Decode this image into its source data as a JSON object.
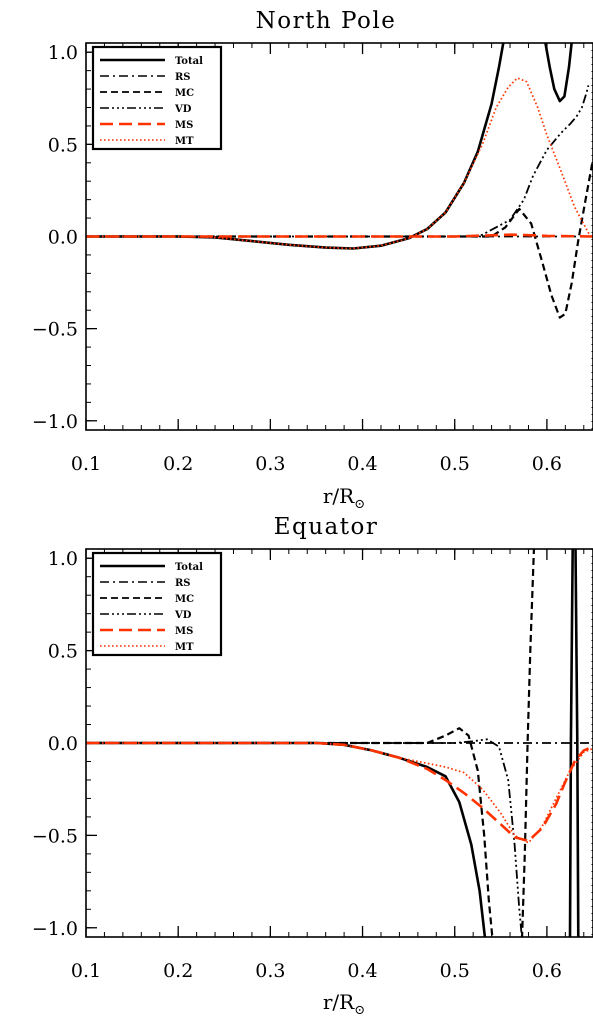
{
  "chart_data": [
    {
      "type": "line",
      "title": "North Pole",
      "xlabel": "r/R",
      "xlabel_sub": "⊙",
      "ylabel": "",
      "xlim": [
        0.1,
        0.65
      ],
      "ylim": [
        -1.05,
        1.05
      ],
      "xticks": [
        "0.1",
        "0.2",
        "0.3",
        "0.4",
        "0.5",
        "0.6"
      ],
      "xtick_values": [
        0.1,
        0.2,
        0.3,
        0.4,
        0.5,
        0.6
      ],
      "yticks": [
        "1.0",
        "0.5",
        "0.0",
        "−0.5",
        "−1.0"
      ],
      "ytick_values": [
        1.0,
        0.5,
        0.0,
        -0.5,
        -1.0
      ],
      "legend_position": "top-left",
      "series": [
        {
          "name": "Total",
          "color": "#000000",
          "dash": "solid",
          "width": 2.6,
          "points": [
            [
              0.1,
              0
            ],
            [
              0.2,
              0
            ],
            [
              0.24,
              -0.005
            ],
            [
              0.28,
              -0.025
            ],
            [
              0.32,
              -0.045
            ],
            [
              0.36,
              -0.06
            ],
            [
              0.39,
              -0.065
            ],
            [
              0.42,
              -0.05
            ],
            [
              0.45,
              -0.01
            ],
            [
              0.47,
              0.04
            ],
            [
              0.49,
              0.13
            ],
            [
              0.51,
              0.29
            ],
            [
              0.525,
              0.46
            ],
            [
              0.54,
              0.72
            ],
            [
              0.548,
              0.92
            ],
            [
              0.553,
              1.06
            ]
          ]
        },
        {
          "name": "Total",
          "color": "#000000",
          "dash": "solid",
          "width": 2.6,
          "points": [
            [
              0.598,
              1.06
            ],
            [
              0.603,
              0.92
            ],
            [
              0.608,
              0.8
            ],
            [
              0.614,
              0.735
            ],
            [
              0.619,
              0.76
            ],
            [
              0.624,
              0.92
            ],
            [
              0.627,
              1.06
            ]
          ]
        },
        {
          "name": "RS",
          "color": "#000000",
          "dash": "dashdot",
          "width": 1.8,
          "points": [
            [
              0.1,
              0
            ],
            [
              0.65,
              0
            ]
          ]
        },
        {
          "name": "MC",
          "color": "#000000",
          "dash": "dash",
          "width": 2.2,
          "points": [
            [
              0.1,
              0
            ],
            [
              0.54,
              0
            ],
            [
              0.555,
              0.05
            ],
            [
              0.57,
              0.15
            ],
            [
              0.583,
              0.07
            ],
            [
              0.595,
              -0.14
            ],
            [
              0.605,
              -0.32
            ],
            [
              0.614,
              -0.44
            ],
            [
              0.62,
              -0.42
            ],
            [
              0.627,
              -0.25
            ],
            [
              0.634,
              -0.02
            ],
            [
              0.642,
              0.2
            ],
            [
              0.65,
              0.42
            ]
          ]
        },
        {
          "name": "VD",
          "color": "#000000",
          "dash": "dashdotdotdot",
          "width": 1.8,
          "points": [
            [
              0.1,
              0
            ],
            [
              0.52,
              0
            ],
            [
              0.53,
              0.01
            ],
            [
              0.545,
              0.05
            ],
            [
              0.56,
              0.09
            ],
            [
              0.575,
              0.2
            ],
            [
              0.585,
              0.33
            ],
            [
              0.6,
              0.47
            ],
            [
              0.615,
              0.56
            ],
            [
              0.625,
              0.61
            ],
            [
              0.632,
              0.65
            ],
            [
              0.638,
              0.7
            ],
            [
              0.643,
              0.78
            ],
            [
              0.645,
              0.82
            ]
          ]
        },
        {
          "name": "MS",
          "color": "#ff3300",
          "dash": "longdash",
          "width": 2.6,
          "points": [
            [
              0.1,
              0
            ],
            [
              0.5,
              0
            ],
            [
              0.53,
              0.005
            ],
            [
              0.56,
              0.01
            ],
            [
              0.575,
              0.008
            ],
            [
              0.6,
              0.003
            ],
            [
              0.65,
              0
            ]
          ]
        },
        {
          "name": "MT",
          "color": "#ff3300",
          "dash": "dot",
          "width": 1.7,
          "points": [
            [
              0.1,
              0
            ],
            [
              0.2,
              0
            ],
            [
              0.24,
              -0.005
            ],
            [
              0.28,
              -0.025
            ],
            [
              0.32,
              -0.045
            ],
            [
              0.36,
              -0.06
            ],
            [
              0.39,
              -0.065
            ],
            [
              0.42,
              -0.05
            ],
            [
              0.45,
              -0.01
            ],
            [
              0.47,
              0.04
            ],
            [
              0.49,
              0.13
            ],
            [
              0.51,
              0.29
            ],
            [
              0.53,
              0.5
            ],
            [
              0.545,
              0.7
            ],
            [
              0.558,
              0.81
            ],
            [
              0.568,
              0.86
            ],
            [
              0.578,
              0.84
            ],
            [
              0.59,
              0.7
            ],
            [
              0.6,
              0.55
            ],
            [
              0.615,
              0.36
            ],
            [
              0.63,
              0.16
            ],
            [
              0.645,
              0.02
            ],
            [
              0.65,
              -0.01
            ]
          ]
        }
      ]
    },
    {
      "type": "line",
      "title": "Equator",
      "xlabel": "r/R",
      "xlabel_sub": "⊙",
      "ylabel": "",
      "xlim": [
        0.1,
        0.65
      ],
      "ylim": [
        -1.05,
        1.05
      ],
      "xticks": [
        "0.1",
        "0.2",
        "0.3",
        "0.4",
        "0.5",
        "0.6"
      ],
      "xtick_values": [
        0.1,
        0.2,
        0.3,
        0.4,
        0.5,
        0.6
      ],
      "yticks": [
        "1.0",
        "0.5",
        "0.0",
        "−0.5",
        "−1.0"
      ],
      "ytick_values": [
        1.0,
        0.5,
        0.0,
        -0.5,
        -1.0
      ],
      "legend_position": "top-left",
      "series": [
        {
          "name": "Total",
          "color": "#000000",
          "dash": "solid",
          "width": 2.6,
          "points": [
            [
              0.1,
              0
            ],
            [
              0.35,
              0
            ],
            [
              0.38,
              -0.01
            ],
            [
              0.41,
              -0.04
            ],
            [
              0.44,
              -0.08
            ],
            [
              0.47,
              -0.13
            ],
            [
              0.49,
              -0.18
            ],
            [
              0.505,
              -0.32
            ],
            [
              0.518,
              -0.55
            ],
            [
              0.527,
              -0.8
            ],
            [
              0.533,
              -1.06
            ]
          ]
        },
        {
          "name": "Total",
          "color": "#000000",
          "dash": "solid",
          "width": 2.6,
          "points": [
            [
              0.625,
              -1.06
            ],
            [
              0.626,
              0
            ],
            [
              0.628,
              1.06
            ]
          ]
        },
        {
          "name": "Total",
          "color": "#000000",
          "dash": "solid",
          "width": 2.6,
          "points": [
            [
              0.631,
              1.06
            ],
            [
              0.633,
              0
            ],
            [
              0.634,
              -1.06
            ]
          ]
        },
        {
          "name": "RS",
          "color": "#000000",
          "dash": "dashdot",
          "width": 1.8,
          "points": [
            [
              0.1,
              0
            ],
            [
              0.65,
              0
            ]
          ]
        },
        {
          "name": "MC",
          "color": "#000000",
          "dash": "dash",
          "width": 2.2,
          "points": [
            [
              0.1,
              0
            ],
            [
              0.47,
              0
            ],
            [
              0.49,
              0.04
            ],
            [
              0.505,
              0.08
            ],
            [
              0.515,
              0.04
            ],
            [
              0.525,
              -0.15
            ],
            [
              0.532,
              -0.5
            ],
            [
              0.537,
              -0.85
            ],
            [
              0.541,
              -1.06
            ]
          ]
        },
        {
          "name": "MC",
          "color": "#000000",
          "dash": "dash",
          "width": 2.2,
          "points": [
            [
              0.573,
              -1.06
            ],
            [
              0.576,
              -0.6
            ],
            [
              0.579,
              0
            ],
            [
              0.582,
              0.5
            ],
            [
              0.586,
              1.06
            ]
          ]
        },
        {
          "name": "VD",
          "color": "#000000",
          "dash": "dashdotdotdot",
          "width": 1.8,
          "points": [
            [
              0.1,
              0
            ],
            [
              0.5,
              0
            ],
            [
              0.52,
              0.01
            ],
            [
              0.535,
              0.02
            ],
            [
              0.548,
              -0.02
            ],
            [
              0.558,
              -0.2
            ],
            [
              0.565,
              -0.55
            ],
            [
              0.57,
              -0.9
            ],
            [
              0.573,
              -1.06
            ]
          ]
        },
        {
          "name": "MS",
          "color": "#ff3300",
          "dash": "longdash",
          "width": 2.6,
          "points": [
            [
              0.1,
              0
            ],
            [
              0.35,
              0
            ],
            [
              0.38,
              -0.01
            ],
            [
              0.41,
              -0.04
            ],
            [
              0.44,
              -0.08
            ],
            [
              0.47,
              -0.14
            ],
            [
              0.49,
              -0.2
            ],
            [
              0.51,
              -0.27
            ],
            [
              0.53,
              -0.35
            ],
            [
              0.55,
              -0.44
            ],
            [
              0.565,
              -0.51
            ],
            [
              0.58,
              -0.53
            ],
            [
              0.595,
              -0.46
            ],
            [
              0.61,
              -0.33
            ],
            [
              0.62,
              -0.21
            ],
            [
              0.63,
              -0.1
            ],
            [
              0.64,
              -0.04
            ],
            [
              0.65,
              -0.02
            ]
          ]
        },
        {
          "name": "MT",
          "color": "#ff3300",
          "dash": "dot",
          "width": 1.7,
          "points": [
            [
              0.1,
              0
            ],
            [
              0.35,
              0
            ],
            [
              0.38,
              -0.01
            ],
            [
              0.41,
              -0.04
            ],
            [
              0.44,
              -0.08
            ],
            [
              0.47,
              -0.11
            ],
            [
              0.49,
              -0.13
            ],
            [
              0.51,
              -0.16
            ],
            [
              0.53,
              -0.25
            ],
            [
              0.55,
              -0.38
            ],
            [
              0.565,
              -0.5
            ],
            [
              0.58,
              -0.54
            ],
            [
              0.595,
              -0.45
            ],
            [
              0.61,
              -0.3
            ],
            [
              0.625,
              -0.15
            ],
            [
              0.64,
              -0.05
            ],
            [
              0.65,
              -0.03
            ]
          ]
        }
      ]
    }
  ],
  "legend": [
    {
      "label": "Total",
      "color": "#000000",
      "dash": "solid",
      "width": 2.4
    },
    {
      "label": "RS",
      "color": "#000000",
      "dash": "dashdot",
      "width": 1.6
    },
    {
      "label": "MC",
      "color": "#000000",
      "dash": "dash",
      "width": 1.8
    },
    {
      "label": "VD",
      "color": "#000000",
      "dash": "dashdotdotdot",
      "width": 1.6
    },
    {
      "label": "MS",
      "color": "#ff3300",
      "dash": "longdash",
      "width": 2.4
    },
    {
      "label": "MT",
      "color": "#ff3300",
      "dash": "dot",
      "width": 1.6
    }
  ]
}
